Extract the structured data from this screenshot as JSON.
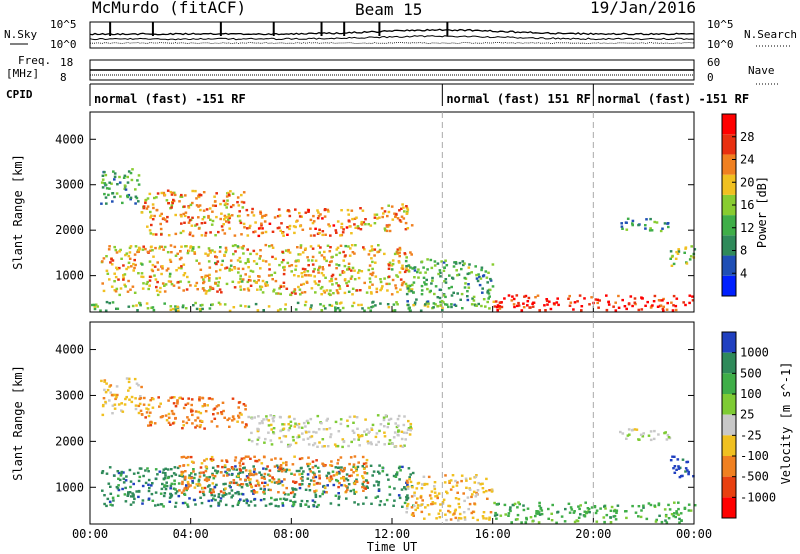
{
  "header": {
    "station": "McMurdo (fitACF)",
    "beam": "Beam 15",
    "date": "19/Jan/2016"
  },
  "top_panel_labels": {
    "nsky": "N.Sky",
    "nsearch": "N.Search",
    "freq": "Freq.",
    "freq_unit": "[MHz]",
    "nave": "Nave",
    "cpid": "CPID",
    "nsky_ticks": [
      "10^5",
      "10^0"
    ],
    "nsearch_ticks": [
      "10^5",
      "10^0"
    ],
    "freq_ticks": [
      "18",
      "8"
    ],
    "nave_ticks": [
      "60",
      "0"
    ]
  },
  "cpid_segments": [
    {
      "label": "normal (fast) -151 RF",
      "start_hour": 0,
      "end_hour": 14
    },
    {
      "label": "normal (fast) 151 RF",
      "start_hour": 14,
      "end_hour": 20
    },
    {
      "label": "normal (fast) -151 RF",
      "start_hour": 20,
      "end_hour": 24
    }
  ],
  "x_axis": {
    "label": "Time UT",
    "ticks": [
      "00:00",
      "04:00",
      "08:00",
      "12:00",
      "16:00",
      "20:00",
      "00:00"
    ],
    "tick_hours": [
      0,
      4,
      8,
      12,
      16,
      20,
      24
    ]
  },
  "chart_data": [
    {
      "type": "heatmap",
      "name": "power",
      "ylabel": "Slant Range [km]",
      "ylim": [
        200,
        4600
      ],
      "yticks": [
        1000,
        2000,
        3000,
        4000
      ],
      "xlim": [
        0,
        24
      ],
      "colorbar": {
        "label": "Power [dB]",
        "range": [
          0,
          32
        ],
        "ticks": [
          4,
          8,
          12,
          16,
          20,
          24,
          28
        ],
        "colors": [
          "#0020ff",
          "#1f4fb5",
          "#2f8a5a",
          "#3fae48",
          "#88cc30",
          "#f0c020",
          "#f08020",
          "#e83010",
          "#ff0000"
        ]
      },
      "regions": [
        {
          "t0": 0.4,
          "t1": 2.0,
          "r0": 2600,
          "r1": 3400,
          "v": 12
        },
        {
          "t0": 2.0,
          "t1": 6.2,
          "r0": 1900,
          "r1": 2900,
          "v": 22
        },
        {
          "t0": 6.2,
          "t1": 10.5,
          "r0": 1900,
          "r1": 2500,
          "v": 24
        },
        {
          "t0": 10.5,
          "t1": 12.8,
          "r0": 2000,
          "r1": 2600,
          "v": 22
        },
        {
          "t0": 0.4,
          "t1": 12.8,
          "r0": 600,
          "r1": 1700,
          "v": 20
        },
        {
          "t0": 0.0,
          "t1": 14.0,
          "r0": 250,
          "r1": 450,
          "v": 14
        },
        {
          "t0": 12.5,
          "t1": 16.0,
          "r0": 300,
          "r1": 1400,
          "v": 12
        },
        {
          "t0": 16.0,
          "t1": 24.0,
          "r0": 250,
          "r1": 600,
          "v": 28
        },
        {
          "t0": 21.0,
          "t1": 23.0,
          "r0": 2000,
          "r1": 2300,
          "v": 10
        },
        {
          "t0": 23.0,
          "t1": 24.0,
          "r0": 1200,
          "r1": 1700,
          "v": 16
        }
      ]
    },
    {
      "type": "heatmap",
      "name": "velocity",
      "ylabel": "Slant Range [km]",
      "ylim": [
        200,
        4600
      ],
      "yticks": [
        1000,
        2000,
        3000,
        4000
      ],
      "xlim": [
        0,
        24
      ],
      "colorbar": {
        "label": "Velocity [m s^-1]",
        "ticks": [
          "1000",
          "500",
          "100",
          "25",
          "-25",
          "-100",
          "-500",
          "-1000"
        ],
        "colors": [
          "#2040c0",
          "#2f8a5a",
          "#3fae48",
          "#7ecb34",
          "#c8c8c8",
          "#f0c020",
          "#f08020",
          "#e84010",
          "#ff0000"
        ]
      },
      "regions": [
        {
          "t0": 0.4,
          "t1": 2.0,
          "r0": 2600,
          "r1": 3400,
          "v": "-100"
        },
        {
          "t0": 2.0,
          "t1": 6.2,
          "r0": 2300,
          "r1": 3000,
          "v": "-500"
        },
        {
          "t0": 6.2,
          "t1": 12.8,
          "r0": 1900,
          "r1": 2600,
          "v": "-25"
        },
        {
          "t0": 0.4,
          "t1": 12.8,
          "r0": 600,
          "r1": 1500,
          "v": "500"
        },
        {
          "t0": 3.5,
          "t1": 11.0,
          "r0": 900,
          "r1": 1700,
          "v": "-500"
        },
        {
          "t0": 12.5,
          "t1": 16.0,
          "r0": 300,
          "r1": 1300,
          "v": "-100"
        },
        {
          "t0": 16.0,
          "t1": 24.0,
          "r0": 250,
          "r1": 700,
          "v": "100"
        },
        {
          "t0": 21.0,
          "t1": 23.0,
          "r0": 2000,
          "r1": 2300,
          "v": "-25"
        },
        {
          "t0": 23.0,
          "t1": 24.0,
          "r0": 1200,
          "r1": 1700,
          "v": "1000"
        }
      ]
    }
  ]
}
